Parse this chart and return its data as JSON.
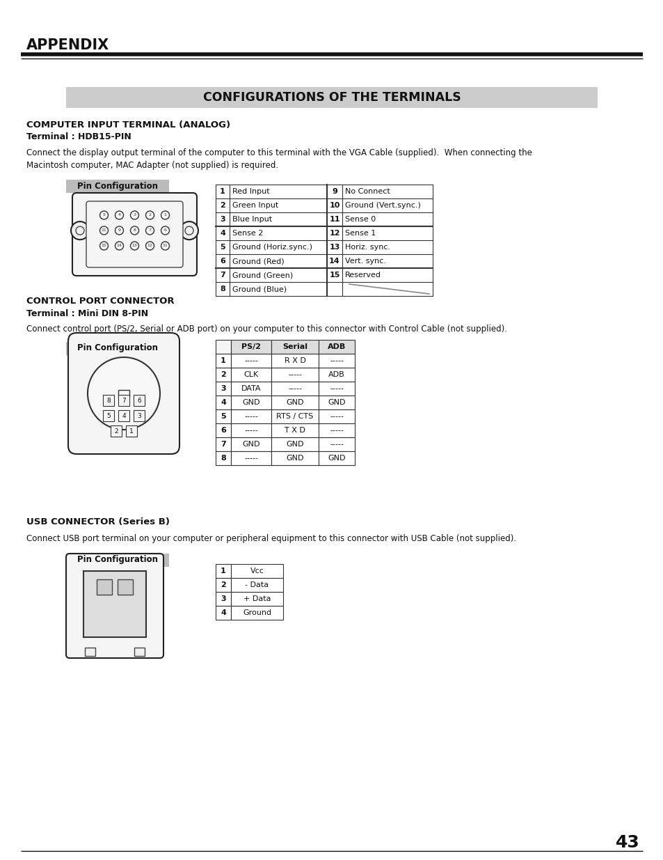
{
  "page_num": "43",
  "bg_color": "#ffffff",
  "header_title": "APPENDIX",
  "section_title": "CONFIGURATIONS OF THE TERMINALS",
  "section_title_bg": "#cccccc",
  "sec1_heading": "COMPUTER INPUT TERMINAL (ANALOG)",
  "sec1_subheading": "Terminal : HDB15-PIN",
  "sec1_desc": "Connect the display output terminal of the computer to this terminal with the VGA Cable (supplied).  When connecting the\nMacintosh computer, MAC Adapter (not supplied) is required.",
  "sec1_pin_label": "Pin Configuration",
  "sec1_table_left": [
    [
      "1",
      "Red Input"
    ],
    [
      "2",
      "Green Input"
    ],
    [
      "3",
      "Blue Input"
    ],
    [
      "4",
      "Sense 2"
    ],
    [
      "5",
      "Ground (Horiz.sync.)"
    ],
    [
      "6",
      "Ground (Red)"
    ],
    [
      "7",
      "Ground (Green)"
    ],
    [
      "8",
      "Ground (Blue)"
    ]
  ],
  "sec1_table_right": [
    [
      "9",
      "No Connect"
    ],
    [
      "10",
      "Ground (Vert.sync.)"
    ],
    [
      "11",
      "Sense 0"
    ],
    [
      "12",
      "Sense 1"
    ],
    [
      "13",
      "Horiz. sync."
    ],
    [
      "14",
      "Vert. sync."
    ],
    [
      "15",
      "Reserved"
    ],
    [
      "",
      ""
    ]
  ],
  "sec2_heading": "CONTROL PORT CONNECTOR",
  "sec2_subheading": "Terminal : Mini DIN 8-PIN",
  "sec2_desc": "Connect control port (PS/2, Serial or ADB port) on your computer to this connector with Control Cable (not supplied).",
  "sec2_pin_label": "Pin Configuration",
  "sec2_table_headers": [
    "",
    "PS/2",
    "Serial",
    "ADB"
  ],
  "sec2_table_rows": [
    [
      "1",
      "-----",
      "R X D",
      "-----"
    ],
    [
      "2",
      "CLK",
      "-----",
      "ADB"
    ],
    [
      "3",
      "DATA",
      "-----",
      "-----"
    ],
    [
      "4",
      "GND",
      "GND",
      "GND"
    ],
    [
      "5",
      "-----",
      "RTS / CTS",
      "-----"
    ],
    [
      "6",
      "-----",
      "T X D",
      "-----"
    ],
    [
      "7",
      "GND",
      "GND",
      "-----"
    ],
    [
      "8",
      "-----",
      "GND",
      "GND"
    ]
  ],
  "sec3_heading": "USB CONNECTOR (Series B)",
  "sec3_desc": "Connect USB port terminal on your computer or peripheral equipment to this connector with USB Cable (not supplied).",
  "sec3_pin_label": "Pin Configuration",
  "sec3_table_rows": [
    [
      "1",
      "Vcc"
    ],
    [
      "2",
      "- Data"
    ],
    [
      "3",
      "+ Data"
    ],
    [
      "4",
      "Ground"
    ]
  ]
}
